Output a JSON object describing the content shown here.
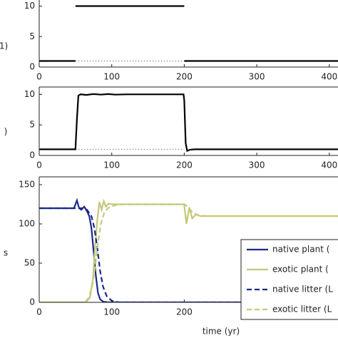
{
  "chart_data": [
    {
      "type": "line",
      "ylabel": "1)",
      "xlim": [
        0,
        412
      ],
      "ylim": [
        0,
        11
      ],
      "xticks": [
        0,
        100,
        200,
        300,
        400
      ],
      "yticks": [
        0,
        5,
        10
      ],
      "series": [
        {
          "color": "#000000",
          "linestyle": "solid",
          "x": [
            0,
            50
          ],
          "values": [
            1,
            1
          ]
        },
        {
          "color": "#000000",
          "linestyle": "solid",
          "x": [
            50,
            200
          ],
          "values": [
            10,
            10
          ]
        },
        {
          "color": "#000000",
          "linestyle": "solid",
          "x": [
            200,
            412
          ],
          "values": [
            1,
            1
          ]
        },
        {
          "color": "#777777",
          "linestyle": "dotted",
          "x": [
            50,
            200
          ],
          "values": [
            1,
            1
          ]
        }
      ]
    },
    {
      "type": "line",
      "ylabel": ")",
      "xlim": [
        0,
        412
      ],
      "ylim": [
        0,
        11.2
      ],
      "xticks": [
        0,
        100,
        200,
        300,
        400
      ],
      "yticks": [
        0,
        5,
        10
      ],
      "series": [
        {
          "color": "#777777",
          "linestyle": "dotted",
          "x": [
            50,
            200
          ],
          "values": [
            1,
            1
          ]
        },
        {
          "color": "#000000",
          "linestyle": "solid",
          "x": [
            0,
            50,
            52,
            54,
            57,
            65,
            75,
            85,
            95,
            105,
            120,
            140,
            160,
            180,
            199,
            200,
            202,
            204,
            208,
            215,
            412
          ],
          "values": [
            1,
            1,
            6,
            9.8,
            10,
            9.9,
            10.05,
            9.95,
            10.05,
            9.95,
            10,
            10,
            10,
            10,
            10,
            9,
            2,
            0.75,
            0.95,
            1,
            1
          ]
        }
      ]
    },
    {
      "type": "line",
      "xlabel": "time (yr)",
      "ylabel": "s",
      "xlim": [
        0,
        412
      ],
      "ylim": [
        0,
        160
      ],
      "xticks": [
        0,
        100,
        200,
        300,
        400
      ],
      "yticks": [
        0,
        50,
        100,
        150
      ],
      "series": [
        {
          "name": "native plant (",
          "color": "#1a2a8c",
          "linestyle": "solid",
          "x": [
            0,
            48,
            52,
            55,
            58,
            62,
            66,
            69,
            72,
            75,
            78,
            81,
            84,
            88,
            95,
            412
          ],
          "values": [
            120,
            120,
            130,
            120,
            118,
            122,
            116,
            110,
            95,
            65,
            35,
            12,
            4,
            1,
            0,
            0
          ]
        },
        {
          "name": "exotic plant (",
          "color": "#c5c97a",
          "linestyle": "solid",
          "x": [
            0,
            64,
            70,
            74,
            77,
            80,
            83,
            86,
            89,
            92,
            96,
            100,
            110,
            199,
            200,
            203,
            207,
            211,
            216,
            222,
            412
          ],
          "values": [
            0,
            0,
            6,
            30,
            70,
            105,
            128,
            118,
            129,
            122,
            126,
            125,
            125,
            125,
            124,
            100,
            121,
            107,
            112,
            110,
            110
          ]
        },
        {
          "name": "native litter (L",
          "color": "#1a2a8c",
          "linestyle": "dashed",
          "x": [
            0,
            60,
            66,
            72,
            76,
            80,
            84,
            88,
            93,
            100,
            110,
            412
          ],
          "values": [
            120,
            120,
            118,
            110,
            95,
            70,
            40,
            20,
            8,
            2,
            0,
            0
          ]
        },
        {
          "name": "exotic litter (L",
          "color": "#c5c97a",
          "linestyle": "dashed",
          "x": [
            0,
            62,
            68,
            73,
            77,
            81,
            85,
            90,
            96,
            105,
            115,
            200,
            205,
            212,
            220,
            230,
            412
          ],
          "values": [
            0,
            0,
            5,
            20,
            45,
            75,
            100,
            115,
            121,
            124,
            125,
            125,
            122,
            114,
            111,
            110,
            110
          ]
        }
      ]
    }
  ]
}
